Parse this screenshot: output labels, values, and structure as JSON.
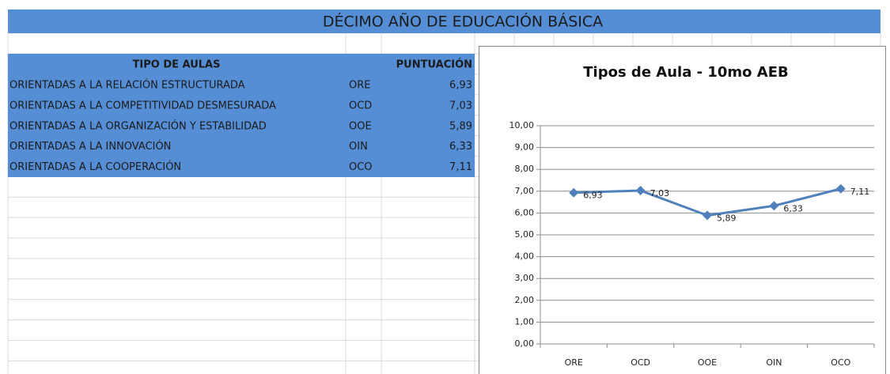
{
  "header": {
    "title": "DÉCIMO AÑO DE EDUCACIÓN BÁSICA"
  },
  "table": {
    "columns": [
      "TIPO DE AULAS",
      "PUNTUACIÓN"
    ],
    "rows": [
      [
        "ORIENTADAS A LA RELACIÓN ESTRUCTURADA",
        "ORE",
        "6,93"
      ],
      [
        "ORIENTADAS A LA COMPETITIVIDAD DESMESURADA",
        "OCD",
        "7,03"
      ],
      [
        "ORIENTADAS A LA ORGANIZACIÓN Y ESTABILIDAD",
        "OOE",
        "5,89"
      ],
      [
        "ORIENTADAS A LA INNOVACIÓN",
        "OIN",
        "6,33"
      ],
      [
        "ORIENTADAS A LA COOPERACIÓN",
        "OCO",
        "7,11"
      ]
    ]
  },
  "chart_data": {
    "type": "line",
    "title": "Tipos de Aula - 10mo AEB",
    "categories": [
      "ORE",
      "OCD",
      "OOE",
      "OIN",
      "OCO"
    ],
    "values": [
      6.93,
      7.03,
      5.89,
      6.33,
      7.11
    ],
    "value_labels": [
      "6,93",
      "7,03",
      "5,89",
      "6,33",
      "7,11"
    ],
    "color": "#4f81bd",
    "ylim": [
      0,
      10
    ],
    "yticks": [
      {
        "value": 0,
        "label": "0,00"
      },
      {
        "value": 1,
        "label": "1,00"
      },
      {
        "value": 2,
        "label": "2,00"
      },
      {
        "value": 3,
        "label": "3,00"
      },
      {
        "value": 4,
        "label": "4,00"
      },
      {
        "value": 5,
        "label": "5,00"
      },
      {
        "value": 6,
        "label": "6,00"
      },
      {
        "value": 7,
        "label": "7,00"
      },
      {
        "value": 8,
        "label": "8,00"
      },
      {
        "value": 9,
        "label": "9,00"
      },
      {
        "value": 10,
        "label": "10,00"
      }
    ],
    "grid": true
  }
}
